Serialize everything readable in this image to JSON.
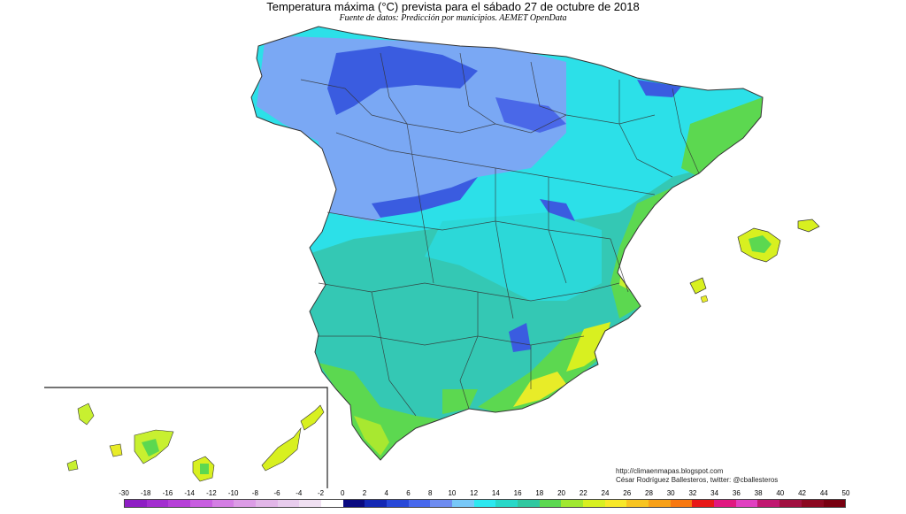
{
  "header": {
    "title": "Temperatura máxima (°C) prevista para el sábado 27 de octubre de 2018",
    "subtitle": "Fuente de datos: Predicción por municipios. AEMET OpenData"
  },
  "credits": {
    "url": "http://climaenmapas.blogspot.com",
    "author": "César Rodríguez Ballesteros, twitter: @cballesteros"
  },
  "legend": {
    "labels": [
      "-30",
      "-18",
      "-16",
      "-14",
      "-12",
      "-10",
      "-8",
      "-6",
      "-4",
      "-2",
      "0",
      "2",
      "4",
      "6",
      "8",
      "10",
      "12",
      "14",
      "16",
      "18",
      "20",
      "22",
      "24",
      "26",
      "28",
      "30",
      "32",
      "34",
      "36",
      "38",
      "40",
      "42",
      "44",
      "50"
    ],
    "colors": [
      "#8e1ec4",
      "#a32ed0",
      "#b640d8",
      "#c85ee0",
      "#d47ee4",
      "#dc9ce6",
      "#e2b6e8",
      "#e8cced",
      "#f0e0f2",
      "#ffffff",
      "#0a0a80",
      "#1428b4",
      "#2848d8",
      "#4868ec",
      "#6e8cf0",
      "#78c8f8",
      "#2ce8f0",
      "#28d8c8",
      "#30c8a0",
      "#5cd850",
      "#a0e830",
      "#d8f020",
      "#f8e828",
      "#f8c420",
      "#f8a018",
      "#f87810",
      "#e81818",
      "#e01880",
      "#e040c0",
      "#c01870",
      "#a01040",
      "#8c0820",
      "#780010"
    ]
  },
  "regions_legend_note": "",
  "map_colors": {
    "cold_blue": "#3a5ce0",
    "cool_blue": "#6e8cf0",
    "cyan": "#2ce8f0",
    "teal": "#30c8b0",
    "green": "#5cd850",
    "yellow_green": "#c8f030",
    "yellow": "#f0e828",
    "border": "#333333"
  }
}
